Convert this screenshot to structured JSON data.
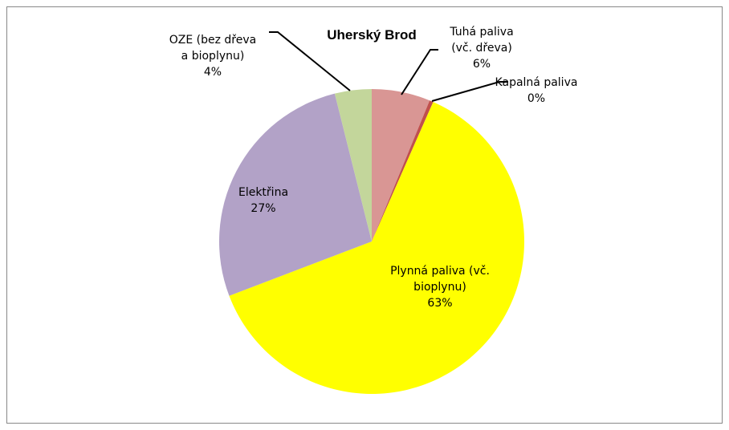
{
  "chart_data": {
    "type": "pie",
    "title": "Uherský Brod",
    "categories": [
      "Tuhá paliva\n(vč. dřeva)",
      "Kapalná paliva",
      "Plynná paliva (vč.\nbioplynu)",
      "Elektřina",
      "OZE (bez dřeva\na bioplynu)"
    ],
    "values": [
      6.2,
      0.4,
      62.6,
      26.9,
      3.9
    ],
    "value_labels": [
      "6%",
      "0%",
      "63%",
      "27%",
      "4%"
    ],
    "colors": [
      "#d99694",
      "#c0504d",
      "#ffff00",
      "#b2a2c7",
      "#c3d69b"
    ]
  }
}
